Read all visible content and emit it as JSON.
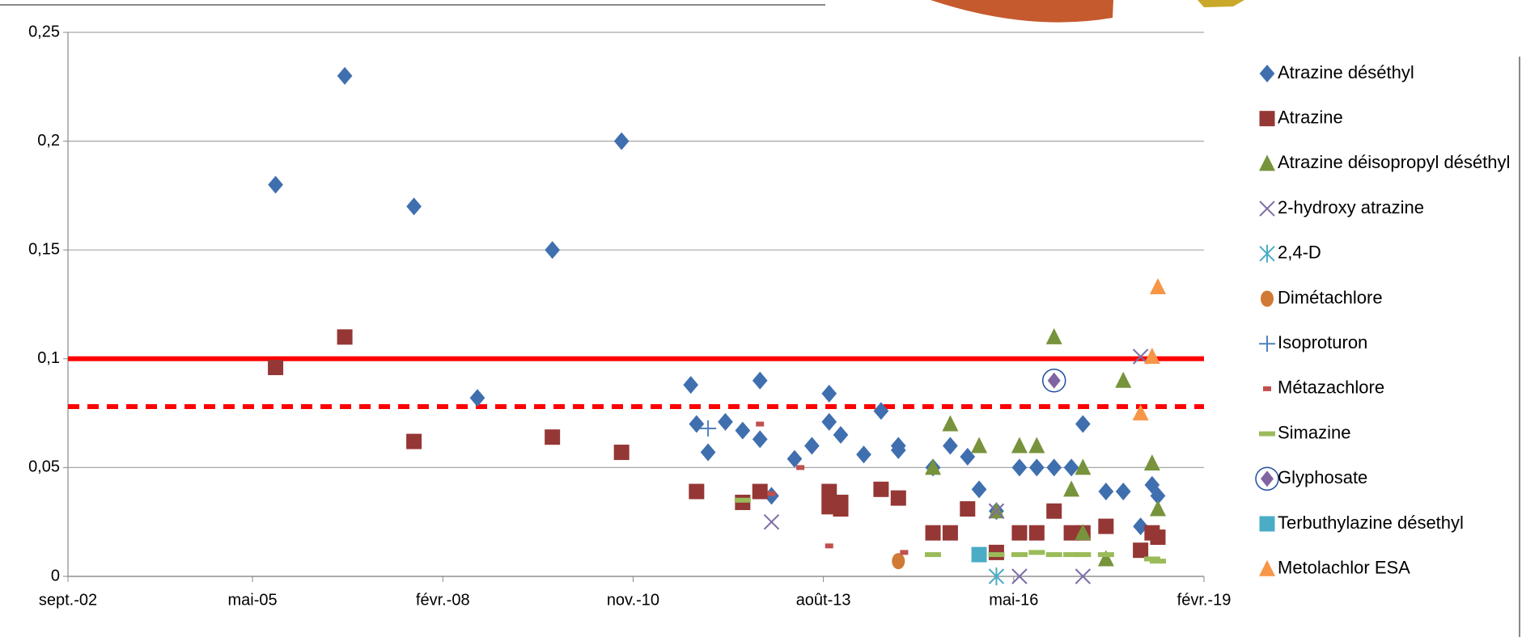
{
  "chart_data": {
    "type": "scatter",
    "xlim": [
      "2002-09",
      "2019-02"
    ],
    "xticks": [
      {
        "value": "2002-09",
        "label": "sept.-02"
      },
      {
        "value": "2005-05",
        "label": "mai-05"
      },
      {
        "value": "2008-02",
        "label": "févr.-08"
      },
      {
        "value": "2010-11",
        "label": "nov.-10"
      },
      {
        "value": "2013-08",
        "label": "août-13"
      },
      {
        "value": "2016-05",
        "label": "mai-16"
      },
      {
        "value": "2019-02",
        "label": "févr.-19"
      }
    ],
    "ylim": [
      0,
      0.25
    ],
    "yticks": [
      0,
      {
        "value": 0.05,
        "label": "0,05"
      },
      {
        "value": 0.1,
        "label": "0,1"
      },
      {
        "value": 0.15,
        "label": "0,15"
      },
      {
        "value": 0.2,
        "label": "0,2"
      },
      {
        "value": 0.25,
        "label": "0,25"
      }
    ],
    "grid": true,
    "legend": "right",
    "reference_lines": [
      {
        "value": 0.1,
        "color": "#ff0000",
        "style": "solid"
      },
      {
        "value": 0.078,
        "color": "#ff0000",
        "style": "dashed"
      }
    ],
    "series": [
      {
        "name": "Atrazine déséthyl",
        "color": "#3f6faf",
        "marker": "diamond",
        "x": [
          "2005-09",
          "2006-09",
          "2007-09",
          "2008-08",
          "2009-09",
          "2010-09",
          "2011-09",
          "2011-10",
          "2011-12",
          "2012-03",
          "2012-06",
          "2012-09",
          "2012-09",
          "2012-11",
          "2013-03",
          "2013-06",
          "2013-09",
          "2013-09",
          "2013-11",
          "2014-03",
          "2014-06",
          "2014-09",
          "2014-09",
          "2015-03",
          "2015-06",
          "2015-09",
          "2015-11",
          "2016-02",
          "2016-06",
          "2016-09",
          "2016-12",
          "2017-03",
          "2017-05",
          "2017-09",
          "2017-12",
          "2018-03",
          "2018-05",
          "2018-06"
        ],
        "values": [
          0.18,
          0.23,
          0.17,
          0.082,
          0.15,
          0.2,
          0.088,
          0.07,
          0.057,
          0.071,
          0.067,
          0.09,
          0.063,
          0.037,
          0.054,
          0.06,
          0.084,
          0.071,
          0.065,
          0.056,
          0.076,
          0.058,
          0.06,
          0.05,
          0.06,
          0.055,
          0.04,
          0.03,
          0.05,
          0.05,
          0.05,
          0.05,
          0.07,
          0.039,
          0.039,
          0.023,
          0.042,
          0.037
        ]
      },
      {
        "name": "Atrazine",
        "color": "#953735",
        "marker": "square",
        "x": [
          "2005-09",
          "2006-09",
          "2007-09",
          "2009-09",
          "2010-09",
          "2011-10",
          "2012-06",
          "2012-09",
          "2013-09",
          "2013-09",
          "2013-11",
          "2013-11",
          "2014-06",
          "2014-09",
          "2015-03",
          "2015-06",
          "2015-09",
          "2016-02",
          "2016-06",
          "2016-09",
          "2016-12",
          "2017-03",
          "2017-05",
          "2017-09",
          "2018-03",
          "2018-05",
          "2018-06"
        ],
        "values": [
          0.096,
          0.11,
          0.062,
          0.064,
          0.057,
          0.039,
          0.034,
          0.039,
          0.039,
          0.032,
          0.031,
          0.034,
          0.04,
          0.036,
          0.02,
          0.02,
          0.031,
          0.011,
          0.02,
          0.02,
          0.03,
          0.02,
          0.02,
          0.023,
          0.012,
          0.02,
          0.018
        ]
      },
      {
        "name": "Atrazine déisopropyl déséthyl",
        "color": "#77933c",
        "marker": "triangle",
        "x": [
          "2015-03",
          "2015-06",
          "2015-11",
          "2016-02",
          "2016-06",
          "2016-09",
          "2016-12",
          "2017-03",
          "2017-05",
          "2017-05",
          "2017-09",
          "2017-12",
          "2018-05",
          "2018-06"
        ],
        "values": [
          0.05,
          0.07,
          0.06,
          0.03,
          0.06,
          0.06,
          0.11,
          0.04,
          0.05,
          0.02,
          0.008,
          0.09,
          0.052,
          0.031
        ]
      },
      {
        "name": "2-hydroxy atrazine",
        "color": "#7f6ca6",
        "marker": "x",
        "x": [
          "2012-11",
          "2016-02",
          "2016-06",
          "2017-05",
          "2018-03"
        ],
        "values": [
          0.025,
          0.03,
          0,
          0,
          0.101
        ]
      },
      {
        "name": "2,4-D",
        "color": "#4bacc6",
        "marker": "asterisk",
        "x": [
          "2016-02"
        ],
        "values": [
          0
        ]
      },
      {
        "name": "Dimétachlore",
        "color": "#d07a35",
        "marker": "circle",
        "x": [
          "2014-09"
        ],
        "values": [
          0.007
        ]
      },
      {
        "name": "Isoproturon",
        "color": "#4f81bd",
        "marker": "plus",
        "x": [
          "2011-12"
        ],
        "values": [
          0.068
        ]
      },
      {
        "name": "Métazachlore",
        "color": "#c0504d",
        "marker": "dash-short",
        "x": [
          "2012-09",
          "2012-11",
          "2013-04",
          "2013-09",
          "2014-10"
        ],
        "values": [
          0.07,
          0.038,
          0.05,
          0.014,
          0.011
        ]
      },
      {
        "name": "Simazine",
        "color": "#9bbb59",
        "marker": "dash",
        "x": [
          "2012-06",
          "2015-03",
          "2016-02",
          "2016-06",
          "2016-09",
          "2016-12",
          "2017-03",
          "2017-05",
          "2017-09",
          "2018-05",
          "2018-06"
        ],
        "values": [
          0.035,
          0.01,
          0.01,
          0.01,
          0.011,
          0.01,
          0.01,
          0.01,
          0.01,
          0.008,
          0.007
        ]
      },
      {
        "name": "Glyphosate",
        "color": "#8064a2",
        "marker": "circled-diamond",
        "x": [
          "2016-12"
        ],
        "values": [
          0.09
        ]
      },
      {
        "name": "Terbuthylazine désethyl",
        "color": "#4bacc6",
        "marker": "square",
        "x": [
          "2015-11"
        ],
        "values": [
          0.01
        ]
      },
      {
        "name": "Metolachlor ESA",
        "color": "#f79646",
        "marker": "triangle",
        "x": [
          "2018-03",
          "2018-05",
          "2018-06"
        ],
        "values": [
          0.075,
          0.101,
          0.133
        ]
      }
    ]
  }
}
